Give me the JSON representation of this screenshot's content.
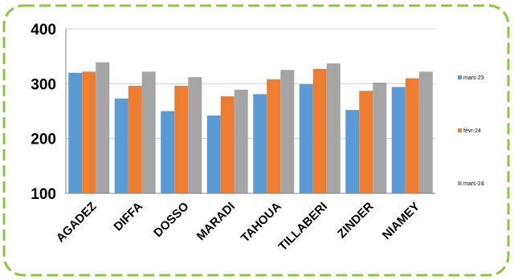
{
  "chart_data": {
    "type": "bar",
    "categories": [
      "AGADEZ",
      "DIFFA",
      "DOSSO",
      "MARADI",
      "TAHOUA",
      "TILLABERI",
      "ZINDER",
      "NIAMEY"
    ],
    "series": [
      {
        "name": "mars-23",
        "color": "#5B9BD5",
        "values": [
          320,
          273,
          250,
          242,
          281,
          299,
          252,
          294
        ]
      },
      {
        "name": "févr-24",
        "color": "#ED7D31",
        "values": [
          322,
          296,
          296,
          277,
          308,
          327,
          287,
          310
        ]
      },
      {
        "name": "mars-24",
        "color": "#A5A5A5",
        "values": [
          339,
          322,
          312,
          289,
          325,
          337,
          302,
          322
        ]
      }
    ],
    "ylim": [
      100,
      400
    ],
    "yticks": [
      100,
      200,
      300,
      400
    ],
    "grid": true,
    "legend": "right",
    "border_color": "#8DC63F"
  }
}
